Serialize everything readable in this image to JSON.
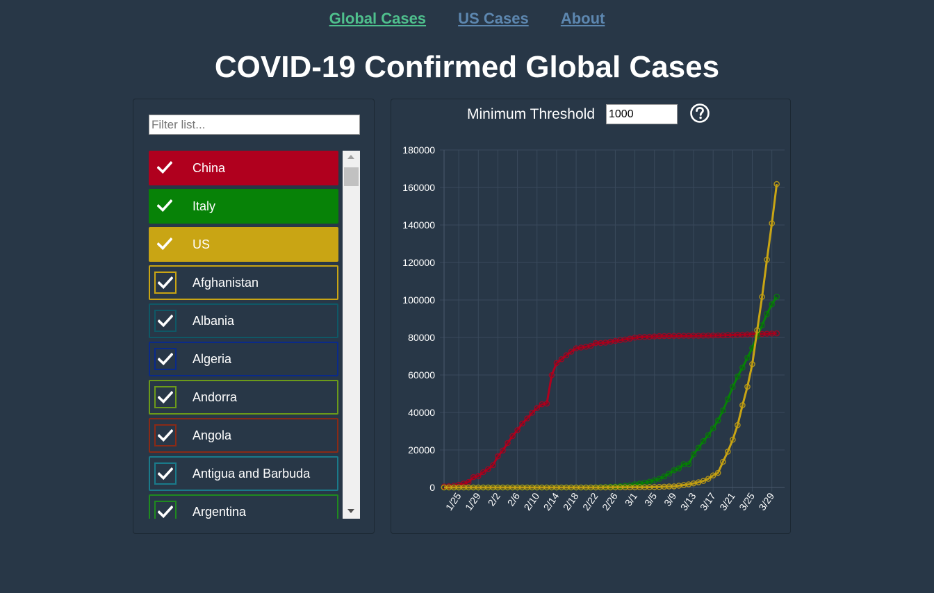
{
  "nav": {
    "global": "Global Cases",
    "us": "US Cases",
    "about": "About"
  },
  "page_title": "COVID-19 Confirmed Global Cases",
  "filter": {
    "placeholder": "Filter list..."
  },
  "threshold": {
    "label": "Minimum Threshold",
    "value": "1000"
  },
  "help_icon": "question-circle-icon",
  "countries": [
    {
      "name": "China",
      "style": "filled",
      "color": "#b0001e",
      "checked": true
    },
    {
      "name": "Italy",
      "style": "filled",
      "color": "#078207",
      "checked": true
    },
    {
      "name": "US",
      "style": "filled",
      "color": "#c9a514",
      "checked": true
    },
    {
      "name": "Afghanistan",
      "style": "outlined",
      "color": "#c9a514",
      "checked": true
    },
    {
      "name": "Albania",
      "style": "outlined",
      "color": "#0f5866",
      "checked": true
    },
    {
      "name": "Algeria",
      "style": "outlined",
      "color": "#0a2a8a",
      "checked": true
    },
    {
      "name": "Andorra",
      "style": "outlined",
      "color": "#6b9a1a",
      "checked": true
    },
    {
      "name": "Angola",
      "style": "outlined",
      "color": "#8a2a16",
      "checked": true
    },
    {
      "name": "Antigua and Barbuda",
      "style": "outlined",
      "color": "#1a7a8a",
      "checked": true
    },
    {
      "name": "Argentina",
      "style": "outlined",
      "color": "#1f8a1f",
      "checked": true
    }
  ],
  "chart_data": {
    "type": "line",
    "title": "",
    "xlabel": "",
    "ylabel": "",
    "ylim": [
      0,
      180000
    ],
    "yticks": [
      "0",
      "20000",
      "40000",
      "60000",
      "80000",
      "100000",
      "120000",
      "140000",
      "160000",
      "180000"
    ],
    "xticks": [
      "1/25",
      "1/29",
      "2/2",
      "2/6",
      "2/10",
      "2/14",
      "2/18",
      "2/22",
      "2/26",
      "3/1",
      "3/5",
      "3/9",
      "3/13",
      "3/17",
      "3/21",
      "3/25",
      "3/29"
    ],
    "x_start": "1/22",
    "x_end": "3/30",
    "grid": true,
    "series": [
      {
        "color": "#b0001e",
        "values": [
          548,
          643,
          920,
          1406,
          2075,
          2877,
          5509,
          6087,
          8141,
          9802,
          11891,
          16630,
          19716,
          23707,
          27440,
          30587,
          34110,
          36814,
          39829,
          42354,
          44386,
          44759,
          59895,
          66358,
          68413,
          70513,
          72434,
          74211,
          74619,
          75077,
          75550,
          77001,
          77022,
          77241,
          77754,
          78166,
          78600,
          78928,
          79356,
          79932,
          80136,
          80261,
          80386,
          80537,
          80690,
          80770,
          80823,
          80860,
          80887,
          80921,
          80932,
          80945,
          80977,
          81003,
          81033,
          81058,
          81102,
          81156,
          81250,
          81305,
          81435,
          81498,
          81591,
          81661,
          81782,
          81897,
          81999,
          82122,
          82198
        ]
      },
      {
        "color": "#078207",
        "values": [
          0,
          0,
          0,
          0,
          0,
          0,
          0,
          0,
          0,
          2,
          2,
          2,
          2,
          2,
          2,
          2,
          3,
          3,
          3,
          3,
          3,
          3,
          3,
          3,
          3,
          3,
          3,
          3,
          3,
          3,
          20,
          62,
          155,
          229,
          322,
          453,
          655,
          888,
          1128,
          1694,
          2036,
          2502,
          3089,
          3858,
          4636,
          5883,
          7375,
          9172,
          10149,
          12462,
          12462,
          17660,
          21157,
          24747,
          27980,
          31506,
          35713,
          41035,
          47021,
          53578,
          59138,
          63927,
          69176,
          74386,
          80589,
          86498,
          92472,
          97689,
          101739
        ]
      },
      {
        "color": "#c9a514",
        "values": [
          1,
          1,
          2,
          2,
          5,
          5,
          5,
          5,
          5,
          7,
          8,
          8,
          11,
          11,
          11,
          11,
          11,
          11,
          11,
          11,
          12,
          12,
          13,
          13,
          13,
          13,
          13,
          13,
          13,
          13,
          15,
          15,
          15,
          51,
          51,
          57,
          58,
          60,
          68,
          74,
          98,
          118,
          149,
          217,
          262,
          402,
          518,
          583,
          959,
          1281,
          1663,
          2179,
          2727,
          3499,
          4632,
          6421,
          7786,
          13680,
          19101,
          25493,
          33276,
          43847,
          53740,
          65778,
          83836,
          101657,
          121478,
          140886,
          161807
        ]
      }
    ]
  }
}
